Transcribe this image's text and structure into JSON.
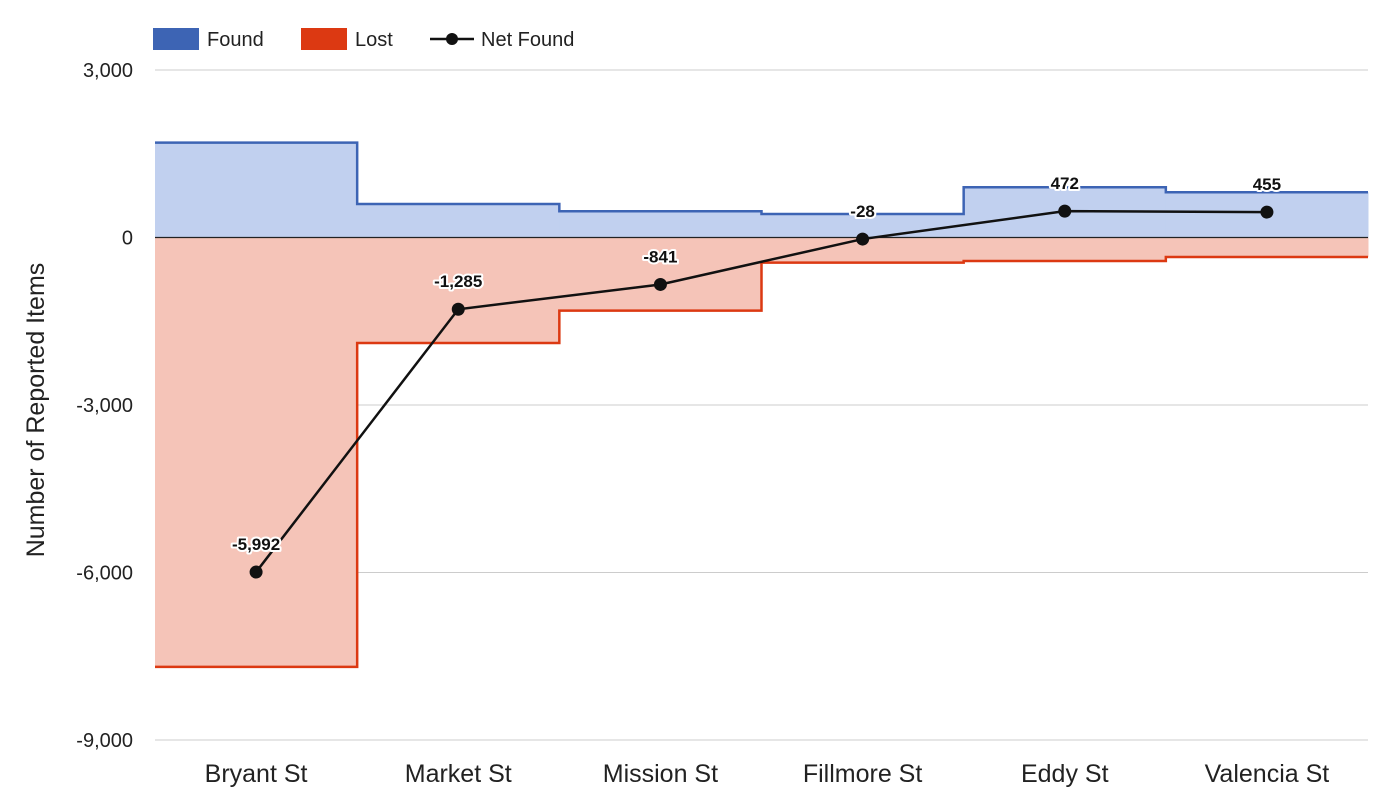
{
  "chart_data": {
    "type": "area",
    "title": "",
    "xlabel": "",
    "ylabel": "Number of Reported Items",
    "categories": [
      "Bryant St",
      "Market St",
      "Mission St",
      "Fillmore St",
      "Eddy St",
      "Valencia St"
    ],
    "series": [
      {
        "name": "Found",
        "kind": "stepped-area",
        "color": "#3d64b4",
        "fill": "#c1d0ef",
        "values": [
          1700,
          600,
          470,
          420,
          900,
          810
        ]
      },
      {
        "name": "Lost",
        "kind": "stepped-area",
        "color": "#dc3912",
        "fill": "#f5c4b8",
        "values": [
          -7690,
          -1890,
          -1310,
          -450,
          -420,
          -350
        ]
      },
      {
        "name": "Net Found",
        "kind": "line",
        "color": "#111111",
        "values": [
          -5992,
          -1285,
          -841,
          -28,
          472,
          455
        ],
        "labels": [
          "-5,992",
          "-1,285",
          "-841",
          "-28",
          "472",
          "455"
        ]
      }
    ],
    "ylim": [
      -9000,
      3000
    ],
    "yticks": [
      3000,
      0,
      -3000,
      -6000,
      -9000
    ],
    "ytick_labels": [
      "3,000",
      "0",
      "-3,000",
      "-6,000",
      "-9,000"
    ],
    "grid": true,
    "legend": "top-left"
  }
}
